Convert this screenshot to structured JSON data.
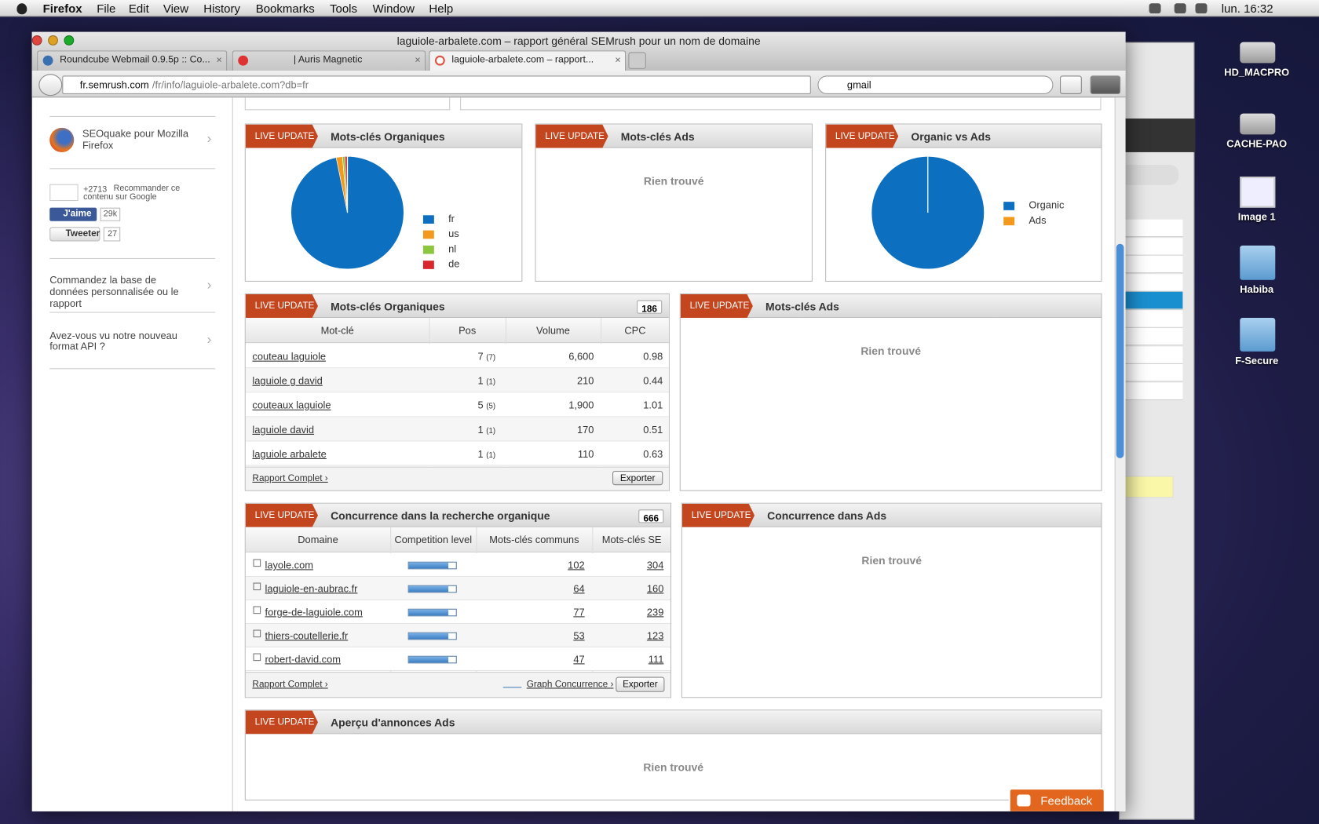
{
  "menubar": {
    "app": "Firefox",
    "menus": [
      "File",
      "Edit",
      "View",
      "History",
      "Bookmarks",
      "Tools",
      "Window",
      "Help"
    ],
    "clock": "lun. 16:32"
  },
  "window": {
    "title": "laguiole-arbalete.com – rapport général SEMrush pour un nom de domaine",
    "tabs": [
      "Roundcube Webmail 0.9.5p :: Co...",
      "| Auris Magnetic",
      "laguiole-arbalete.com – rapport..."
    ],
    "url_host": "fr.semrush.com",
    "url_path": "/fr/info/laguiole-arbalete.com?db=fr",
    "search": "gmail"
  },
  "desktop_icons": [
    "HD_MACPRO",
    "CACHE-PAO",
    "Image 1",
    "Habiba",
    "F-Secure"
  ],
  "sidebar": {
    "seoquake": "SEOquake pour Mozilla Firefox",
    "gplus_count": "+2713",
    "gplus_text": "Recommander ce contenu sur Google",
    "like": "J'aime",
    "like_count": "29k",
    "tweet": "Tweeter",
    "tweet_count": "27",
    "link1": "Commandez la base de données personnalisée ou le rapport",
    "link2": "Avez-vous vu notre nouveau format API ?"
  },
  "badge": "LIVE UPDATE",
  "organic_pie": {
    "title": "Mots-clés Organiques",
    "categories": [
      "fr",
      "us",
      "nl",
      "de"
    ],
    "values": [
      96.8,
      1.8,
      0.7,
      0.7
    ],
    "colors": [
      "#0d6fbf",
      "#f39a1e",
      "#8cc63f",
      "#d9262c"
    ]
  },
  "ads_panel": {
    "title": "Mots-clés Ads",
    "empty": "Rien trouvé"
  },
  "ovsa_pie": {
    "title": "Organic vs Ads",
    "categories": [
      "Organic",
      "Ads"
    ],
    "values": [
      100,
      0
    ],
    "colors": [
      "#0d6fbf",
      "#f39a1e"
    ]
  },
  "keywords": {
    "title": "Mots-clés Organiques",
    "count": "186",
    "headers": [
      "Mot-clé",
      "Pos",
      "Volume",
      "CPC"
    ],
    "rows": [
      [
        "couteau laguiole",
        "7",
        "(7)",
        "6,600",
        "0.98"
      ],
      [
        "laguiole g david",
        "1",
        "(1)",
        "210",
        "0.44"
      ],
      [
        "couteaux laguiole",
        "5",
        "(5)",
        "1,900",
        "1.01"
      ],
      [
        "laguiole david",
        "1",
        "(1)",
        "170",
        "0.51"
      ],
      [
        "laguiole arbalete",
        "1",
        "(1)",
        "110",
        "0.63"
      ]
    ],
    "report": "Rapport Complet ›",
    "export": "Exporter"
  },
  "ads_keywords": {
    "title": "Mots-clés Ads",
    "empty": "Rien trouvé"
  },
  "competitors": {
    "title": "Concurrence dans la recherche organique",
    "count": "666",
    "headers": [
      "Domaine",
      "Competition level",
      "Mots-clés communs",
      "Mots-clés SE"
    ],
    "rows": [
      {
        "domain": "layole.com",
        "level": 0.84,
        "common": "102",
        "se": "304"
      },
      {
        "domain": "laguiole-en-aubrac.fr",
        "level": 0.84,
        "common": "64",
        "se": "160"
      },
      {
        "domain": "forge-de-laguiole.com",
        "level": 0.84,
        "common": "77",
        "se": "239"
      },
      {
        "domain": "thiers-coutellerie.fr",
        "level": 0.84,
        "common": "53",
        "se": "123"
      },
      {
        "domain": "robert-david.com",
        "level": 0.84,
        "common": "47",
        "se": "111"
      }
    ],
    "report": "Rapport Complet ›",
    "graph": "Graph Concurrence ›",
    "export": "Exporter"
  },
  "ads_competition": {
    "title": "Concurrence dans Ads",
    "empty": "Rien trouvé"
  },
  "ads_preview": {
    "title": "Aperçu d'annonces Ads",
    "empty": "Rien trouvé"
  },
  "feedback": "Feedback"
}
